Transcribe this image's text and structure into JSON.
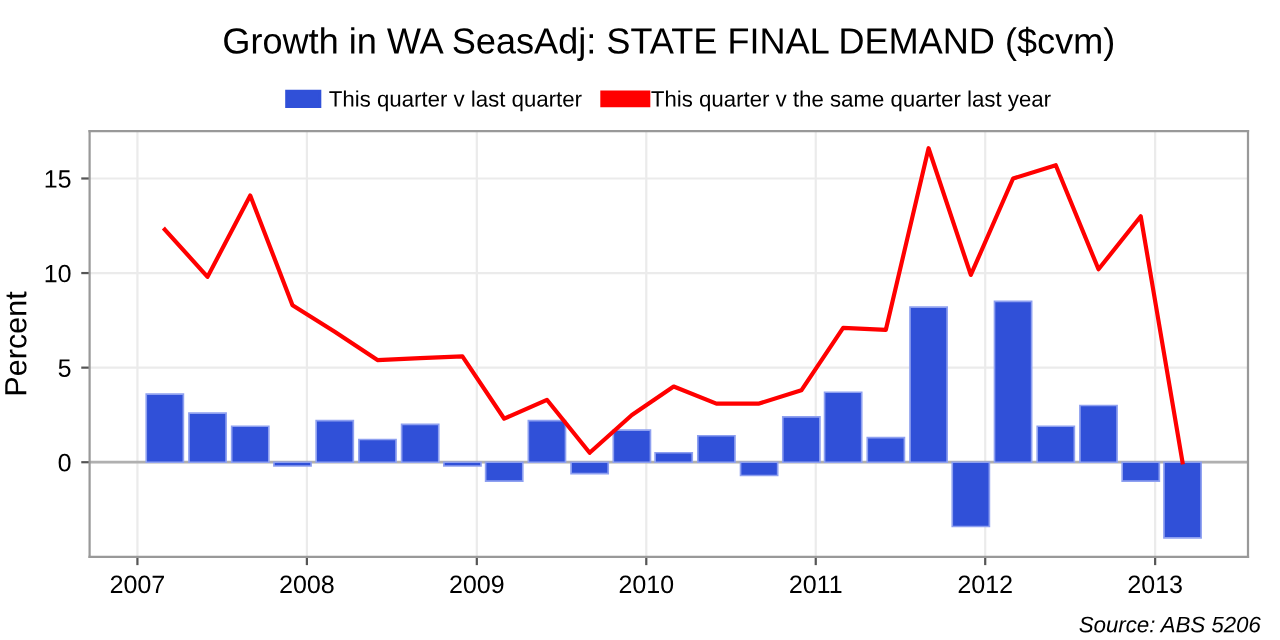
{
  "chart_data": {
    "type": "bar",
    "title": "Growth in WA SeasAdj: STATE FINAL DEMAND ($cvm)",
    "ylabel": "Percent",
    "x": [
      "2007-03",
      "2007-06",
      "2007-09",
      "2007-12",
      "2008-03",
      "2008-06",
      "2008-09",
      "2008-12",
      "2009-03",
      "2009-06",
      "2009-09",
      "2009-12",
      "2010-03",
      "2010-06",
      "2010-09",
      "2010-12",
      "2011-03",
      "2011-06",
      "2011-09",
      "2011-12",
      "2012-03",
      "2012-06",
      "2012-09",
      "2012-12",
      "2013-03"
    ],
    "series": [
      {
        "name": "This quarter v last quarter",
        "color": "#3050d8",
        "values": [
          3.6,
          2.6,
          1.9,
          -0.2,
          2.2,
          1.2,
          2.0,
          -0.2,
          -1.0,
          2.2,
          -0.6,
          1.7,
          0.5,
          1.4,
          -0.7,
          2.4,
          3.7,
          1.3,
          8.2,
          -3.4,
          8.5,
          1.9,
          3.0,
          -1.0,
          -4.0
        ]
      },
      {
        "name": "This quarter v the same quarter last year",
        "type": "line",
        "color": "#ff0000",
        "values": [
          12.3,
          9.8,
          14.1,
          8.3,
          6.9,
          5.4,
          5.5,
          5.6,
          2.3,
          3.3,
          0.5,
          2.5,
          4.0,
          3.1,
          3.1,
          3.8,
          7.1,
          7.0,
          16.6,
          9.9,
          15.0,
          15.7,
          10.2,
          13.0,
          0.0
        ]
      }
    ],
    "xlim": [
      "2006-09-20",
      "2013-07-20"
    ],
    "xticks": [
      {
        "value": "2007-01-01",
        "label": "2007"
      },
      {
        "value": "2008-01-01",
        "label": "2008"
      },
      {
        "value": "2009-01-01",
        "label": "2009"
      },
      {
        "value": "2010-01-01",
        "label": "2010"
      },
      {
        "value": "2011-01-01",
        "label": "2011"
      },
      {
        "value": "2012-01-01",
        "label": "2012"
      },
      {
        "value": "2013-01-01",
        "label": "2013"
      }
    ],
    "ylim": [
      -5,
      17.5
    ],
    "yticks": [
      0,
      5,
      10,
      15
    ],
    "grid": true,
    "legend": "top",
    "ref_lines": [
      {
        "axis": "y",
        "value": 0,
        "color": "#b0b0b0"
      }
    ],
    "annotations": [
      "Source: ABS 5206"
    ]
  }
}
